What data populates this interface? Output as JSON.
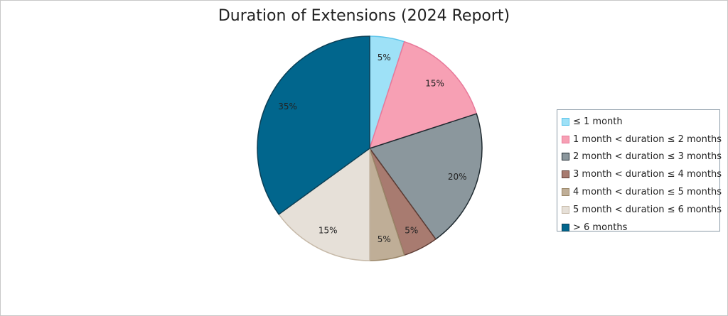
{
  "chart_data": {
    "type": "pie",
    "title": "Duration of Extensions (2024 Report)",
    "legend_position": "right",
    "slices": [
      {
        "label": "≤ 1 month",
        "value": 5,
        "display": "5%",
        "color": "#9ee1f7",
        "border": "#5cc4ea"
      },
      {
        "label": "1 month < duration ≤ 2 months",
        "value": 15,
        "display": "15%",
        "color": "#f7a0b4",
        "border": "#e8799a"
      },
      {
        "label": "2 month < duration ≤ 3 months",
        "value": 20,
        "display": "20%",
        "color": "#8b979d",
        "border": "#1f2a30"
      },
      {
        "label": "3 month < duration ≤ 4 months",
        "value": 5,
        "display": "5%",
        "color": "#a87b70",
        "border": "#5e3d35"
      },
      {
        "label": "4 month < duration ≤ 5 months",
        "value": 5,
        "display": "5%",
        "color": "#bfae97",
        "border": "#9a8668"
      },
      {
        "label": "5 month < duration ≤ 6 months",
        "value": 15,
        "display": "15%",
        "color": "#e6e0d8",
        "border": "#c6b9a8"
      },
      {
        "label": "> 6 months",
        "value": 35,
        "display": "35%",
        "color": "#01668d",
        "border": "#0b3f56"
      }
    ]
  }
}
